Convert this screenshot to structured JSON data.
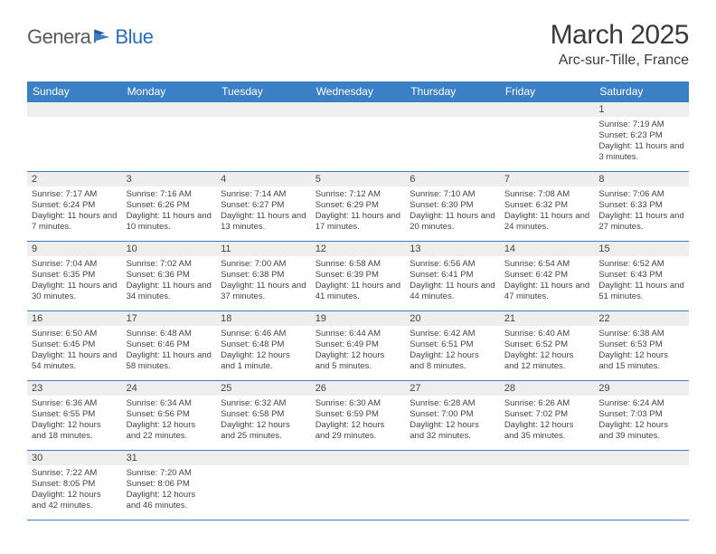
{
  "logo": {
    "part1": "Genera",
    "part2": "Blue"
  },
  "title": "March 2025",
  "location": "Arc-sur-Tille, France",
  "weekdays": [
    "Sunday",
    "Monday",
    "Tuesday",
    "Wednesday",
    "Thursday",
    "Friday",
    "Saturday"
  ],
  "colors": {
    "header_bg": "#3b7fc4",
    "daynum_bg": "#eeeeee",
    "border": "#3b7fc4",
    "logo_blue": "#2a6db8"
  },
  "weeks": [
    [
      {
        "n": "",
        "sr": "",
        "ss": "",
        "dl": ""
      },
      {
        "n": "",
        "sr": "",
        "ss": "",
        "dl": ""
      },
      {
        "n": "",
        "sr": "",
        "ss": "",
        "dl": ""
      },
      {
        "n": "",
        "sr": "",
        "ss": "",
        "dl": ""
      },
      {
        "n": "",
        "sr": "",
        "ss": "",
        "dl": ""
      },
      {
        "n": "",
        "sr": "",
        "ss": "",
        "dl": ""
      },
      {
        "n": "1",
        "sr": "Sunrise: 7:19 AM",
        "ss": "Sunset: 6:23 PM",
        "dl": "Daylight: 11 hours and 3 minutes."
      }
    ],
    [
      {
        "n": "2",
        "sr": "Sunrise: 7:17 AM",
        "ss": "Sunset: 6:24 PM",
        "dl": "Daylight: 11 hours and 7 minutes."
      },
      {
        "n": "3",
        "sr": "Sunrise: 7:16 AM",
        "ss": "Sunset: 6:26 PM",
        "dl": "Daylight: 11 hours and 10 minutes."
      },
      {
        "n": "4",
        "sr": "Sunrise: 7:14 AM",
        "ss": "Sunset: 6:27 PM",
        "dl": "Daylight: 11 hours and 13 minutes."
      },
      {
        "n": "5",
        "sr": "Sunrise: 7:12 AM",
        "ss": "Sunset: 6:29 PM",
        "dl": "Daylight: 11 hours and 17 minutes."
      },
      {
        "n": "6",
        "sr": "Sunrise: 7:10 AM",
        "ss": "Sunset: 6:30 PM",
        "dl": "Daylight: 11 hours and 20 minutes."
      },
      {
        "n": "7",
        "sr": "Sunrise: 7:08 AM",
        "ss": "Sunset: 6:32 PM",
        "dl": "Daylight: 11 hours and 24 minutes."
      },
      {
        "n": "8",
        "sr": "Sunrise: 7:06 AM",
        "ss": "Sunset: 6:33 PM",
        "dl": "Daylight: 11 hours and 27 minutes."
      }
    ],
    [
      {
        "n": "9",
        "sr": "Sunrise: 7:04 AM",
        "ss": "Sunset: 6:35 PM",
        "dl": "Daylight: 11 hours and 30 minutes."
      },
      {
        "n": "10",
        "sr": "Sunrise: 7:02 AM",
        "ss": "Sunset: 6:36 PM",
        "dl": "Daylight: 11 hours and 34 minutes."
      },
      {
        "n": "11",
        "sr": "Sunrise: 7:00 AM",
        "ss": "Sunset: 6:38 PM",
        "dl": "Daylight: 11 hours and 37 minutes."
      },
      {
        "n": "12",
        "sr": "Sunrise: 6:58 AM",
        "ss": "Sunset: 6:39 PM",
        "dl": "Daylight: 11 hours and 41 minutes."
      },
      {
        "n": "13",
        "sr": "Sunrise: 6:56 AM",
        "ss": "Sunset: 6:41 PM",
        "dl": "Daylight: 11 hours and 44 minutes."
      },
      {
        "n": "14",
        "sr": "Sunrise: 6:54 AM",
        "ss": "Sunset: 6:42 PM",
        "dl": "Daylight: 11 hours and 47 minutes."
      },
      {
        "n": "15",
        "sr": "Sunrise: 6:52 AM",
        "ss": "Sunset: 6:43 PM",
        "dl": "Daylight: 11 hours and 51 minutes."
      }
    ],
    [
      {
        "n": "16",
        "sr": "Sunrise: 6:50 AM",
        "ss": "Sunset: 6:45 PM",
        "dl": "Daylight: 11 hours and 54 minutes."
      },
      {
        "n": "17",
        "sr": "Sunrise: 6:48 AM",
        "ss": "Sunset: 6:46 PM",
        "dl": "Daylight: 11 hours and 58 minutes."
      },
      {
        "n": "18",
        "sr": "Sunrise: 6:46 AM",
        "ss": "Sunset: 6:48 PM",
        "dl": "Daylight: 12 hours and 1 minute."
      },
      {
        "n": "19",
        "sr": "Sunrise: 6:44 AM",
        "ss": "Sunset: 6:49 PM",
        "dl": "Daylight: 12 hours and 5 minutes."
      },
      {
        "n": "20",
        "sr": "Sunrise: 6:42 AM",
        "ss": "Sunset: 6:51 PM",
        "dl": "Daylight: 12 hours and 8 minutes."
      },
      {
        "n": "21",
        "sr": "Sunrise: 6:40 AM",
        "ss": "Sunset: 6:52 PM",
        "dl": "Daylight: 12 hours and 12 minutes."
      },
      {
        "n": "22",
        "sr": "Sunrise: 6:38 AM",
        "ss": "Sunset: 6:53 PM",
        "dl": "Daylight: 12 hours and 15 minutes."
      }
    ],
    [
      {
        "n": "23",
        "sr": "Sunrise: 6:36 AM",
        "ss": "Sunset: 6:55 PM",
        "dl": "Daylight: 12 hours and 18 minutes."
      },
      {
        "n": "24",
        "sr": "Sunrise: 6:34 AM",
        "ss": "Sunset: 6:56 PM",
        "dl": "Daylight: 12 hours and 22 minutes."
      },
      {
        "n": "25",
        "sr": "Sunrise: 6:32 AM",
        "ss": "Sunset: 6:58 PM",
        "dl": "Daylight: 12 hours and 25 minutes."
      },
      {
        "n": "26",
        "sr": "Sunrise: 6:30 AM",
        "ss": "Sunset: 6:59 PM",
        "dl": "Daylight: 12 hours and 29 minutes."
      },
      {
        "n": "27",
        "sr": "Sunrise: 6:28 AM",
        "ss": "Sunset: 7:00 PM",
        "dl": "Daylight: 12 hours and 32 minutes."
      },
      {
        "n": "28",
        "sr": "Sunrise: 6:26 AM",
        "ss": "Sunset: 7:02 PM",
        "dl": "Daylight: 12 hours and 35 minutes."
      },
      {
        "n": "29",
        "sr": "Sunrise: 6:24 AM",
        "ss": "Sunset: 7:03 PM",
        "dl": "Daylight: 12 hours and 39 minutes."
      }
    ],
    [
      {
        "n": "30",
        "sr": "Sunrise: 7:22 AM",
        "ss": "Sunset: 8:05 PM",
        "dl": "Daylight: 12 hours and 42 minutes."
      },
      {
        "n": "31",
        "sr": "Sunrise: 7:20 AM",
        "ss": "Sunset: 8:06 PM",
        "dl": "Daylight: 12 hours and 46 minutes."
      },
      {
        "n": "",
        "sr": "",
        "ss": "",
        "dl": ""
      },
      {
        "n": "",
        "sr": "",
        "ss": "",
        "dl": ""
      },
      {
        "n": "",
        "sr": "",
        "ss": "",
        "dl": ""
      },
      {
        "n": "",
        "sr": "",
        "ss": "",
        "dl": ""
      },
      {
        "n": "",
        "sr": "",
        "ss": "",
        "dl": ""
      }
    ]
  ]
}
